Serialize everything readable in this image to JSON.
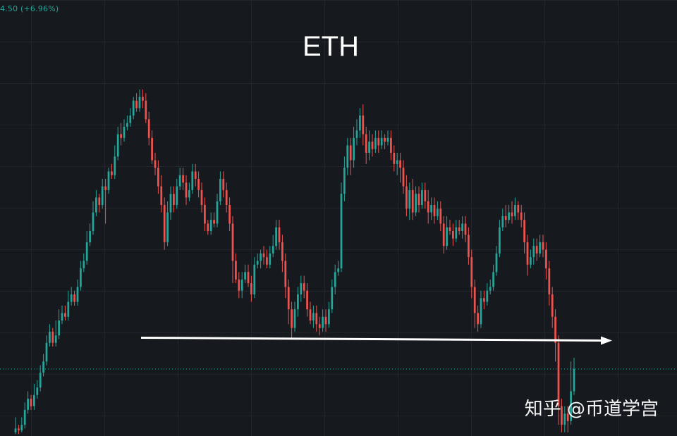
{
  "header": {
    "price_change": "4.50 (+6.96%)"
  },
  "watermark": "知乎 @币道学宫",
  "colors": {
    "background": "#161a1e",
    "grid": "#22262c",
    "up": "#26a69a",
    "down": "#ef5350",
    "arrow": "#ffffff",
    "price_line": "#26a69a"
  },
  "chart_data": {
    "type": "candlestick",
    "title": "ETH",
    "grid": true,
    "ylim": [
      0,
      100
    ],
    "support_level": 26,
    "current_price_line": 18,
    "candles": [
      [
        1,
        2,
        5,
        0.5
      ],
      [
        2,
        1.5,
        3,
        0.5
      ],
      [
        1.5,
        3,
        5,
        1
      ],
      [
        3,
        7,
        9,
        2
      ],
      [
        7,
        10,
        12,
        6
      ],
      [
        10,
        8,
        11,
        7
      ],
      [
        8,
        11,
        14,
        7
      ],
      [
        11,
        13,
        15,
        10
      ],
      [
        13,
        17,
        19,
        12
      ],
      [
        17,
        20,
        22,
        16
      ],
      [
        20,
        25,
        27,
        19
      ],
      [
        25,
        28,
        30,
        24
      ],
      [
        28,
        25,
        29,
        24
      ],
      [
        25,
        27,
        31,
        24
      ],
      [
        27,
        31,
        34,
        26
      ],
      [
        31,
        33,
        35,
        30
      ],
      [
        33,
        32,
        35,
        31
      ],
      [
        32,
        36,
        39,
        31
      ],
      [
        36,
        38,
        40,
        35
      ],
      [
        38,
        36,
        39,
        35
      ],
      [
        36,
        40,
        42,
        35
      ],
      [
        40,
        45,
        47,
        39
      ],
      [
        45,
        47,
        49,
        44
      ],
      [
        47,
        52,
        55,
        46
      ],
      [
        52,
        55,
        57,
        51
      ],
      [
        55,
        60,
        63,
        54
      ],
      [
        60,
        64,
        66,
        59
      ],
      [
        64,
        62,
        65,
        60
      ],
      [
        62,
        67,
        69,
        61
      ],
      [
        67,
        66,
        69,
        57
      ],
      [
        66,
        71,
        72,
        65
      ],
      [
        71,
        70,
        73,
        69
      ],
      [
        70,
        75,
        78,
        69
      ],
      [
        75,
        81,
        83,
        74
      ],
      [
        81,
        80,
        84,
        78
      ],
      [
        80,
        83,
        85,
        79
      ],
      [
        83,
        84,
        86,
        82
      ],
      [
        84,
        86,
        88,
        83
      ],
      [
        86,
        90,
        91,
        85
      ],
      [
        90,
        88,
        92,
        87
      ],
      [
        88,
        91,
        93,
        87
      ],
      [
        91,
        90,
        93,
        88
      ],
      [
        90,
        85,
        92,
        84
      ],
      [
        85,
        80,
        87,
        78
      ],
      [
        80,
        74,
        82,
        73
      ],
      [
        74,
        72,
        76,
        70
      ],
      [
        72,
        67,
        74,
        65
      ],
      [
        67,
        62,
        70,
        60
      ],
      [
        62,
        52,
        64,
        50
      ],
      [
        52,
        60,
        63,
        51
      ],
      [
        60,
        65,
        67,
        58
      ],
      [
        65,
        62,
        67,
        60
      ],
      [
        62,
        67,
        69,
        61
      ],
      [
        67,
        70,
        72,
        66
      ],
      [
        70,
        68,
        72,
        66
      ],
      [
        68,
        64,
        70,
        62
      ],
      [
        64,
        66,
        68,
        63
      ],
      [
        66,
        71,
        73,
        65
      ],
      [
        71,
        69,
        73,
        67
      ],
      [
        69,
        66,
        71,
        64
      ],
      [
        66,
        62,
        68,
        60
      ],
      [
        62,
        57,
        64,
        55
      ],
      [
        57,
        55,
        58,
        54
      ],
      [
        55,
        58,
        60,
        54
      ],
      [
        58,
        57,
        60,
        56
      ],
      [
        57,
        63,
        65,
        56
      ],
      [
        63,
        69,
        71,
        62
      ],
      [
        69,
        66,
        71,
        64
      ],
      [
        66,
        62,
        68,
        60
      ],
      [
        62,
        57,
        64,
        55
      ],
      [
        57,
        47,
        59,
        41
      ],
      [
        47,
        42,
        49,
        41
      ],
      [
        42,
        39,
        44,
        37
      ],
      [
        39,
        42,
        44,
        37
      ],
      [
        42,
        44,
        46,
        41
      ],
      [
        44,
        41,
        46,
        40
      ],
      [
        41,
        38,
        43,
        36
      ],
      [
        38,
        46,
        48,
        37
      ],
      [
        46,
        47,
        49,
        45
      ],
      [
        47,
        49,
        50,
        45
      ],
      [
        49,
        48,
        51,
        46
      ],
      [
        48,
        46,
        50,
        45
      ],
      [
        46,
        49,
        51,
        45
      ],
      [
        49,
        51,
        54,
        48
      ],
      [
        51,
        56,
        58,
        50
      ],
      [
        56,
        52,
        58,
        50
      ],
      [
        52,
        47,
        54,
        44
      ],
      [
        47,
        40,
        49,
        37
      ],
      [
        40,
        34,
        42,
        30
      ],
      [
        34,
        29,
        36,
        26
      ],
      [
        29,
        34,
        36,
        28
      ],
      [
        34,
        38,
        40,
        32
      ],
      [
        38,
        41,
        43,
        36
      ],
      [
        41,
        39,
        43,
        37
      ],
      [
        39,
        34,
        41,
        32
      ],
      [
        34,
        31,
        36,
        30
      ],
      [
        31,
        33,
        35,
        29
      ],
      [
        33,
        30,
        35,
        28
      ],
      [
        30,
        29,
        32,
        27
      ],
      [
        29,
        32,
        34,
        28
      ],
      [
        32,
        30,
        34,
        28
      ],
      [
        30,
        34,
        36,
        29
      ],
      [
        34,
        40,
        42,
        33
      ],
      [
        40,
        44,
        46,
        38
      ],
      [
        44,
        45,
        47,
        43
      ],
      [
        45,
        65,
        68,
        44
      ],
      [
        65,
        72,
        75,
        63
      ],
      [
        72,
        78,
        80,
        70
      ],
      [
        78,
        74,
        80,
        70
      ],
      [
        74,
        80,
        83,
        72
      ],
      [
        80,
        82,
        85,
        78
      ],
      [
        82,
        86,
        88,
        80
      ],
      [
        86,
        81,
        89,
        78
      ],
      [
        81,
        76,
        83,
        73
      ],
      [
        76,
        79,
        82,
        74
      ],
      [
        79,
        77,
        81,
        75
      ],
      [
        77,
        80,
        82,
        76
      ],
      [
        80,
        78,
        82,
        76
      ],
      [
        78,
        80,
        82,
        77
      ],
      [
        80,
        79,
        81,
        77
      ],
      [
        79,
        80,
        82,
        78
      ],
      [
        80,
        76,
        82,
        74
      ],
      [
        76,
        73,
        78,
        71
      ],
      [
        73,
        74,
        76,
        70
      ],
      [
        74,
        72,
        76,
        68
      ],
      [
        72,
        67,
        74,
        65
      ],
      [
        67,
        61,
        70,
        59
      ],
      [
        61,
        66,
        68,
        58
      ],
      [
        66,
        60,
        69,
        58
      ],
      [
        60,
        65,
        67,
        59
      ],
      [
        65,
        62,
        67,
        60
      ],
      [
        62,
        66,
        68,
        61
      ],
      [
        66,
        63,
        68,
        61
      ],
      [
        63,
        60,
        66,
        57
      ],
      [
        60,
        62,
        64,
        58
      ],
      [
        62,
        59,
        64,
        57
      ],
      [
        59,
        61,
        63,
        58
      ],
      [
        61,
        57,
        63,
        55
      ],
      [
        57,
        51,
        59,
        49
      ],
      [
        51,
        56,
        59,
        50
      ],
      [
        56,
        55,
        58,
        54
      ],
      [
        55,
        53,
        57,
        51
      ],
      [
        53,
        56,
        58,
        52
      ],
      [
        56,
        55,
        58,
        54
      ],
      [
        55,
        57,
        59,
        53
      ],
      [
        57,
        54,
        59,
        52
      ],
      [
        54,
        48,
        56,
        46
      ],
      [
        48,
        40,
        50,
        37
      ],
      [
        40,
        33,
        42,
        29
      ],
      [
        33,
        30,
        35,
        28
      ],
      [
        30,
        37,
        39,
        29
      ],
      [
        37,
        36,
        39,
        34
      ],
      [
        36,
        39,
        41,
        35
      ],
      [
        39,
        40,
        42,
        38
      ],
      [
        40,
        44,
        46,
        39
      ],
      [
        44,
        49,
        51,
        43
      ],
      [
        49,
        56,
        58,
        48
      ],
      [
        56,
        59,
        61,
        55
      ],
      [
        59,
        58,
        62,
        56
      ],
      [
        58,
        60,
        62,
        57
      ],
      [
        60,
        59,
        63,
        57
      ],
      [
        59,
        62,
        64,
        58
      ],
      [
        62,
        60,
        63,
        58
      ],
      [
        60,
        58,
        62,
        56
      ],
      [
        58,
        52,
        60,
        49
      ],
      [
        52,
        46,
        54,
        43
      ],
      [
        46,
        48,
        50,
        45
      ],
      [
        48,
        51,
        53,
        46
      ],
      [
        51,
        49,
        53,
        47
      ],
      [
        49,
        52,
        54,
        48
      ],
      [
        52,
        50,
        54,
        48
      ],
      [
        50,
        45,
        52,
        42
      ],
      [
        45,
        38,
        47,
        35
      ],
      [
        38,
        32,
        40,
        29
      ],
      [
        32,
        25,
        34,
        20
      ],
      [
        25,
        8,
        27,
        3
      ],
      [
        8,
        3,
        10,
        1
      ],
      [
        3,
        6,
        8,
        1
      ],
      [
        6,
        4,
        8,
        1
      ],
      [
        4,
        12,
        20,
        3
      ],
      [
        12,
        18,
        21,
        11
      ]
    ]
  }
}
